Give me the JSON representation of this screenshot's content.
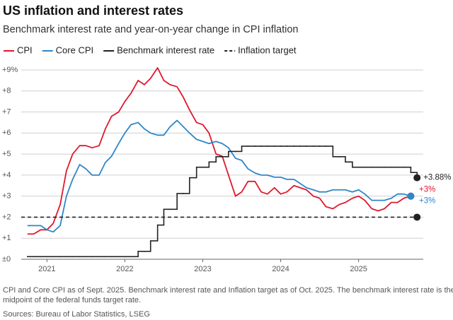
{
  "chart_data": {
    "type": "line",
    "title": "US inflation and interest rates",
    "subtitle": "Benchmark interest rate and year-on-year change in CPI inflation",
    "x": [
      2020.75,
      2020.83,
      2020.92,
      2021,
      2021.08,
      2021.17,
      2021.25,
      2021.33,
      2021.42,
      2021.5,
      2021.58,
      2021.67,
      2021.75,
      2021.83,
      2021.92,
      2022,
      2022.08,
      2022.17,
      2022.25,
      2022.33,
      2022.42,
      2022.5,
      2022.58,
      2022.67,
      2022.75,
      2022.83,
      2022.92,
      2023,
      2023.08,
      2023.17,
      2023.25,
      2023.33,
      2023.42,
      2023.5,
      2023.58,
      2023.67,
      2023.75,
      2023.83,
      2023.92,
      2024,
      2024.08,
      2024.17,
      2024.25,
      2024.33,
      2024.42,
      2024.5,
      2024.58,
      2024.67,
      2024.75,
      2024.83,
      2024.92,
      2025,
      2025.08,
      2025.17,
      2025.25,
      2025.33,
      2025.42,
      2025.5,
      2025.58,
      2025.67,
      2025.75
    ],
    "series": [
      {
        "name": "CPI",
        "color": "#e0182d",
        "end_label": "+3%",
        "values": [
          1.2,
          1.2,
          1.4,
          1.4,
          1.7,
          2.6,
          4.2,
          5.0,
          5.4,
          5.4,
          5.3,
          5.4,
          6.2,
          6.8,
          7.0,
          7.5,
          7.9,
          8.5,
          8.3,
          8.6,
          9.1,
          8.5,
          8.3,
          8.2,
          7.7,
          7.1,
          6.5,
          6.4,
          6.0,
          5.0,
          4.9,
          4.0,
          3.0,
          3.2,
          3.7,
          3.7,
          3.2,
          3.1,
          3.4,
          3.1,
          3.2,
          3.5,
          3.4,
          3.3,
          3.0,
          2.9,
          2.5,
          2.4,
          2.6,
          2.7,
          2.9,
          3.0,
          2.8,
          2.4,
          2.3,
          2.4,
          2.7,
          2.7,
          2.9,
          3.0,
          null
        ]
      },
      {
        "name": "Core CPI",
        "color": "#2f86c8",
        "end_label": "+3%",
        "values": [
          1.6,
          1.6,
          1.6,
          1.4,
          1.3,
          1.6,
          3.0,
          3.8,
          4.5,
          4.3,
          4.0,
          4.0,
          4.6,
          4.9,
          5.5,
          6.0,
          6.4,
          6.5,
          6.2,
          6.0,
          5.9,
          5.9,
          6.3,
          6.6,
          6.3,
          6.0,
          5.7,
          5.6,
          5.5,
          5.6,
          5.5,
          5.3,
          4.8,
          4.7,
          4.3,
          4.1,
          4.0,
          4.0,
          3.9,
          3.9,
          3.8,
          3.8,
          3.6,
          3.4,
          3.3,
          3.2,
          3.2,
          3.3,
          3.3,
          3.3,
          3.2,
          3.3,
          3.1,
          2.8,
          2.8,
          2.8,
          2.9,
          3.1,
          3.1,
          3.0,
          null
        ]
      },
      {
        "name": "Benchmark interest rate",
        "color": "#222222",
        "step": true,
        "end_label": "+3.88%",
        "values": [
          0.125,
          0.125,
          0.125,
          0.125,
          0.125,
          0.125,
          0.125,
          0.125,
          0.125,
          0.125,
          0.125,
          0.125,
          0.125,
          0.125,
          0.125,
          0.125,
          0.125,
          0.375,
          0.375,
          0.875,
          1.625,
          2.375,
          2.375,
          3.125,
          3.125,
          3.875,
          4.375,
          4.375,
          4.625,
          4.875,
          4.875,
          5.125,
          5.125,
          5.375,
          5.375,
          5.375,
          5.375,
          5.375,
          5.375,
          5.375,
          5.375,
          5.375,
          5.375,
          5.375,
          5.375,
          5.375,
          5.375,
          4.875,
          4.875,
          4.625,
          4.375,
          4.375,
          4.375,
          4.375,
          4.375,
          4.375,
          4.375,
          4.375,
          4.375,
          4.125,
          3.875
        ]
      },
      {
        "name": "Inflation target",
        "color": "#222222",
        "dashed": true,
        "value": 2
      }
    ],
    "xlim": [
      2020.67,
      2025.83
    ],
    "xticks": [
      2021,
      2022,
      2023,
      2024,
      2025
    ],
    "ylim": [
      0,
      9
    ],
    "yticks": [
      {
        "value": 0,
        "label": "±0"
      },
      {
        "value": 1,
        "label": "+1"
      },
      {
        "value": 2,
        "label": "+2"
      },
      {
        "value": 3,
        "label": "+3"
      },
      {
        "value": 4,
        "label": "+4"
      },
      {
        "value": 5,
        "label": "+5"
      },
      {
        "value": 6,
        "label": "+6"
      },
      {
        "value": 7,
        "label": "+7"
      },
      {
        "value": 8,
        "label": "+8"
      },
      {
        "value": 9,
        "label": "+9%"
      }
    ],
    "grid": true,
    "legend": "top",
    "note": [
      "CPI and Core CPI as of Sept. 2025. Benchmark interest rate and Inflation target as of Oct. 2025. The benchmark interest rate is the",
      "midpoint of the federal funds target rate."
    ],
    "source": "Sources: Bureau of Labor Statistics, LSEG"
  }
}
